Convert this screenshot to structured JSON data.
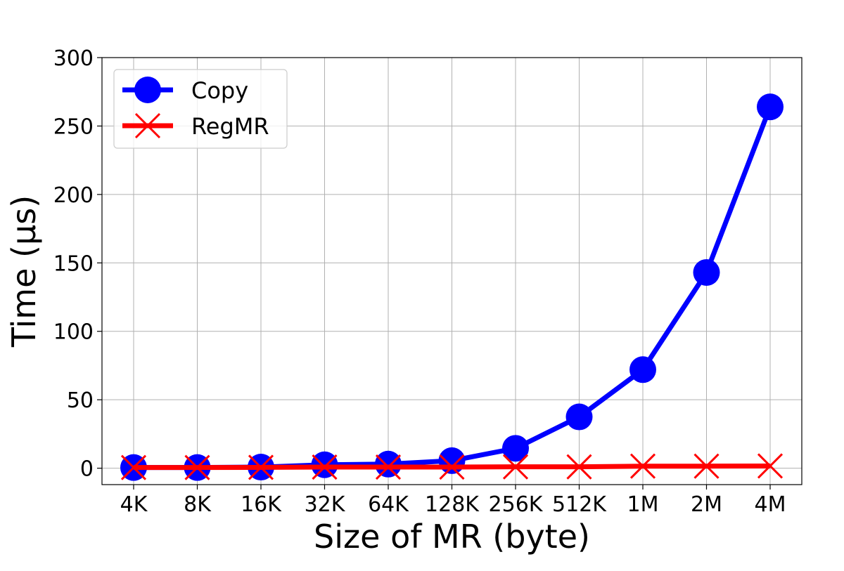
{
  "chart_data": {
    "type": "line",
    "categories": [
      "4K",
      "8K",
      "16K",
      "32K",
      "64K",
      "128K",
      "256K",
      "512K",
      "1M",
      "2M",
      "4M"
    ],
    "series": [
      {
        "name": "Copy",
        "values": [
          0.5,
          0.5,
          0.8,
          2.5,
          3.0,
          5.5,
          14.5,
          37.5,
          72.0,
          143.0,
          264.0
        ],
        "color": "#0000ff",
        "marker": "circle"
      },
      {
        "name": "RegMR",
        "values": [
          0.5,
          0.5,
          0.6,
          0.8,
          0.8,
          0.8,
          1.0,
          1.0,
          1.5,
          1.5,
          1.6
        ],
        "color": "#ff0000",
        "marker": "x"
      }
    ],
    "xlabel": "Size of MR (byte)",
    "ylabel": "Time (μs)",
    "ylim": [
      -12,
      300
    ],
    "yticks": [
      0,
      50,
      100,
      150,
      200,
      250,
      300
    ],
    "grid": true,
    "legend_position": "top-left"
  }
}
